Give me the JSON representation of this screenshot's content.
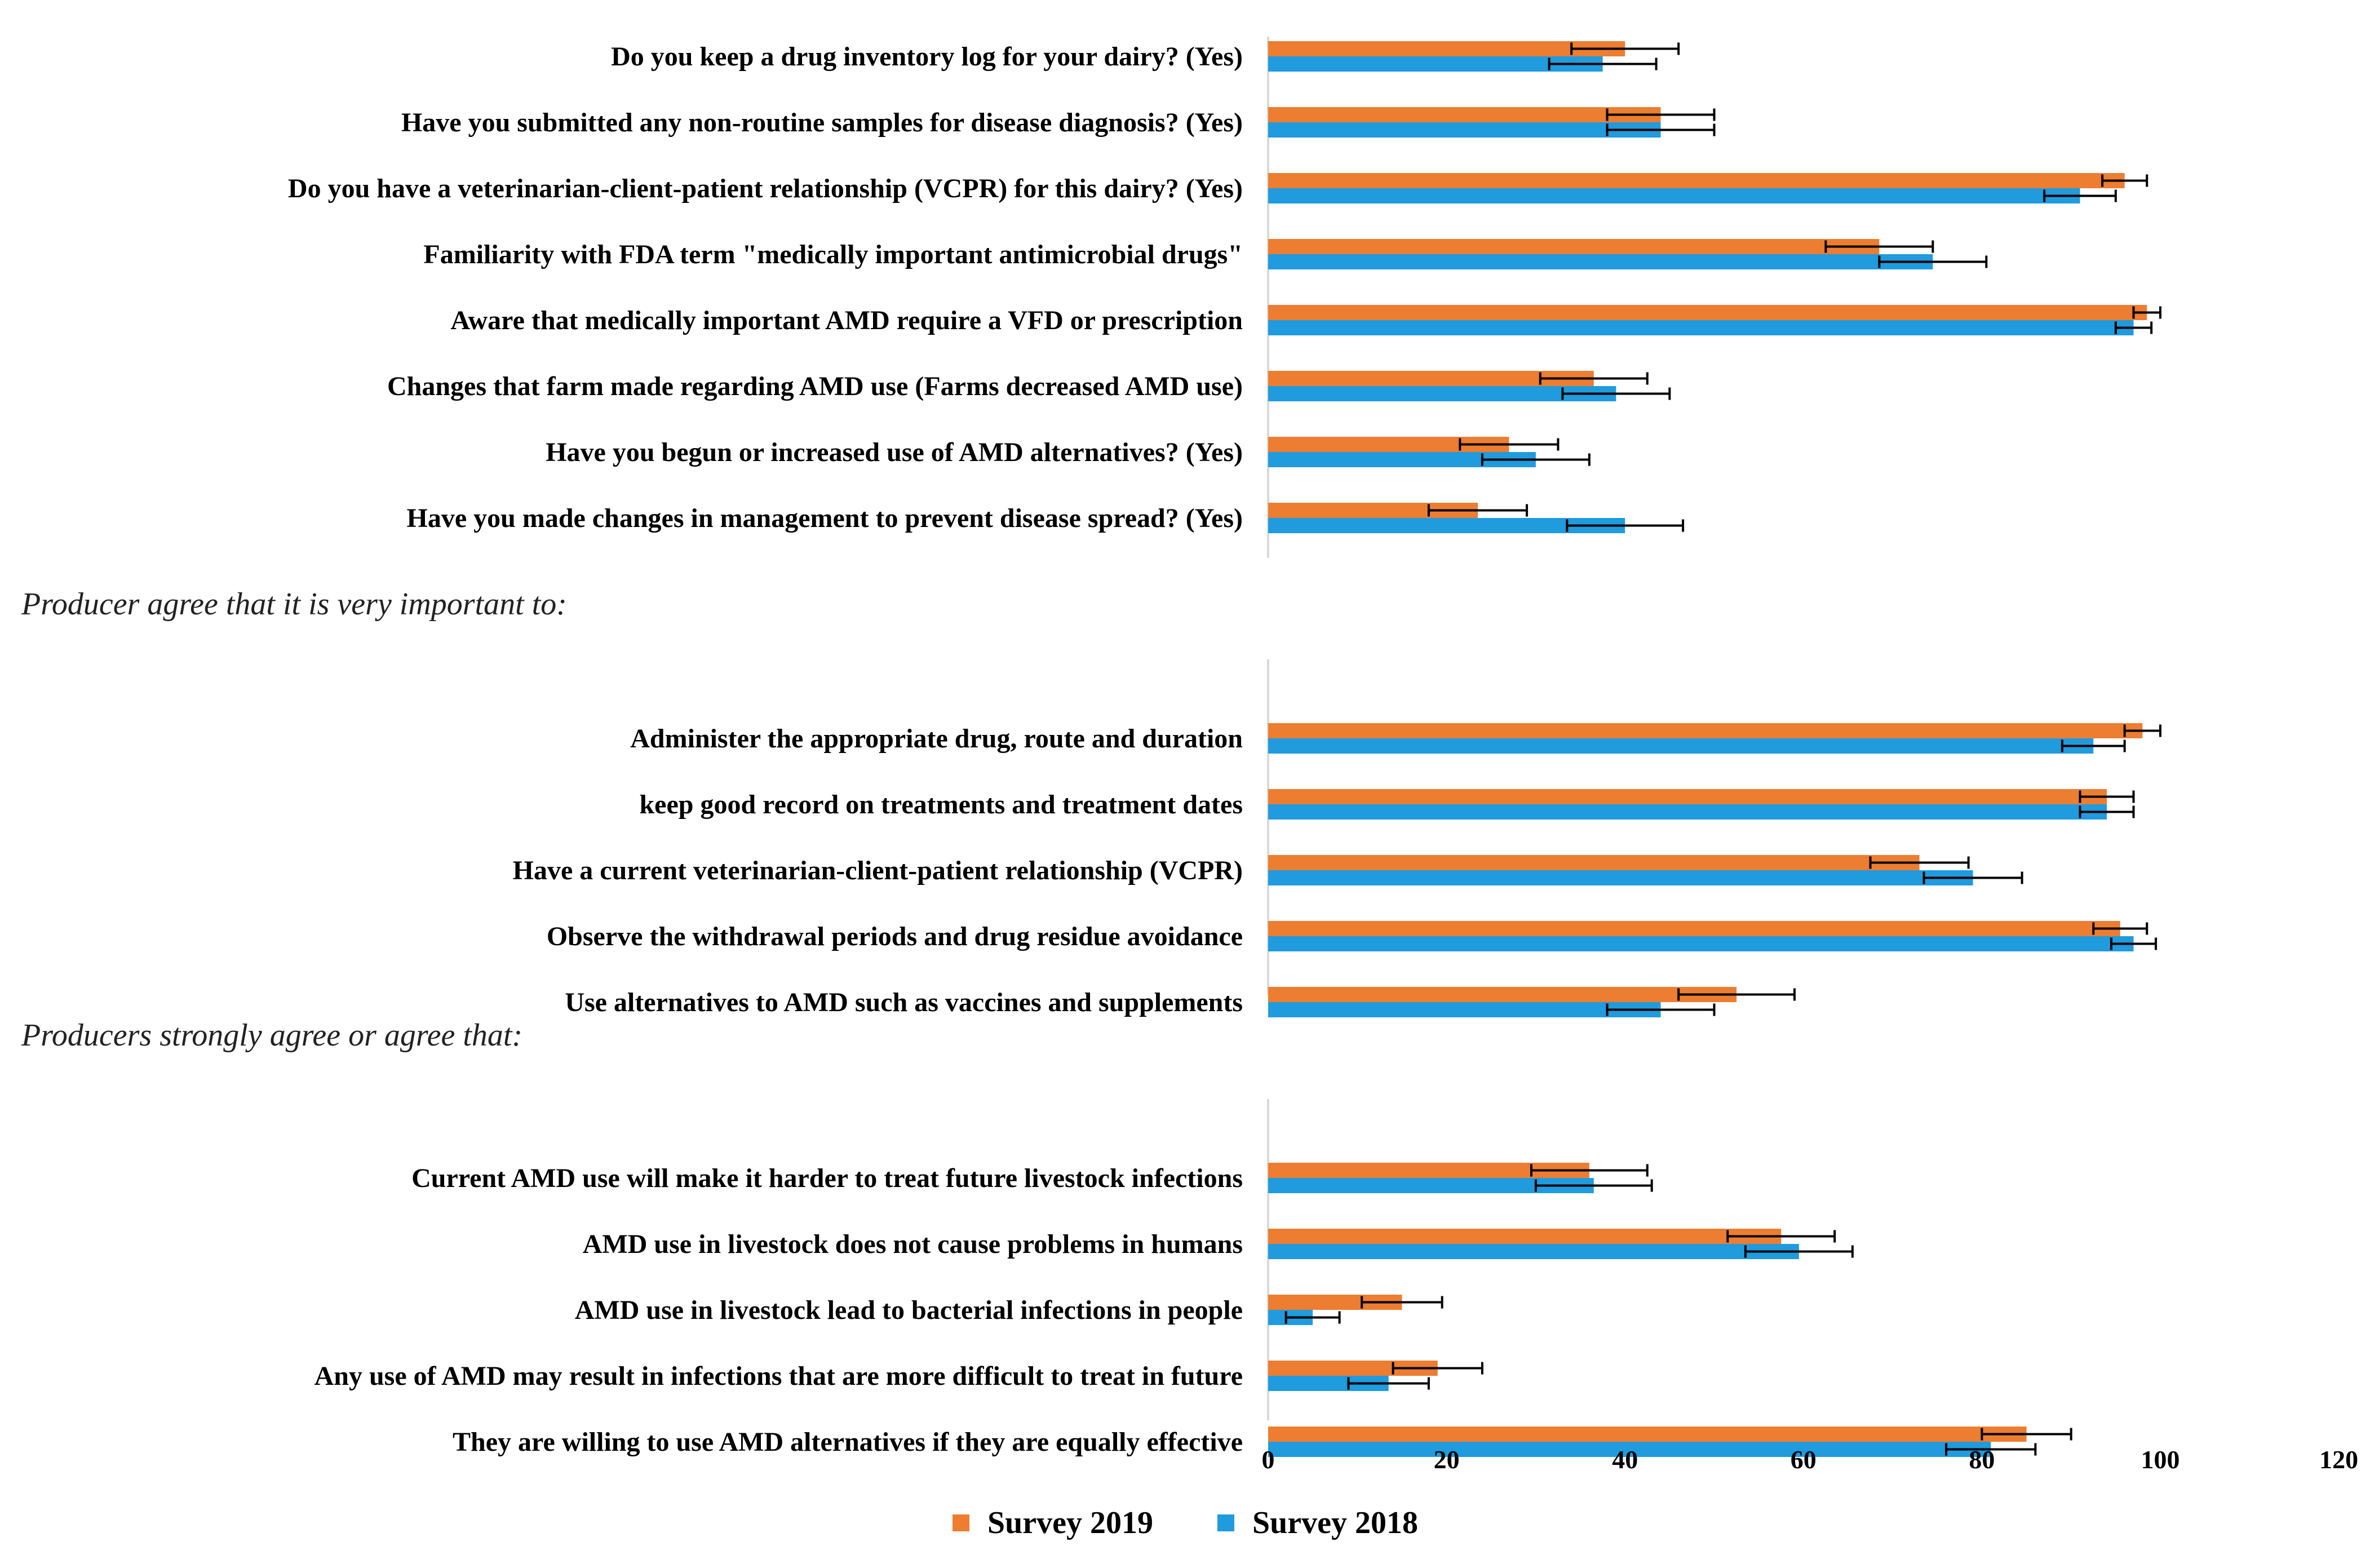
{
  "chart_data": {
    "type": "bar",
    "orientation": "horizontal",
    "xlim": [
      0,
      120
    ],
    "xticks": [
      0,
      20,
      40,
      60,
      80,
      100,
      120
    ],
    "grid": false,
    "legend_position": "bottom",
    "series": [
      {
        "name": "Survey 2019",
        "color": "#ED7D31"
      },
      {
        "name": "Survey 2018",
        "color": "#1F9BDE"
      }
    ],
    "groups": [
      {
        "heading": "",
        "items": [
          {
            "label": "Do you keep a drug inventory log for your dairy? (Yes)",
            "v2019": 40,
            "e2019": 6,
            "v2018": 37.5,
            "e2018": 6
          },
          {
            "label": "Have you submitted any non-routine samples for disease diagnosis? (Yes)",
            "v2019": 44,
            "e2019": 6,
            "v2018": 44,
            "e2018": 6
          },
          {
            "label": "Do you have a veterinarian-client-patient relationship (VCPR) for this dairy? (Yes)",
            "v2019": 96,
            "e2019": 2.5,
            "v2018": 91,
            "e2018": 4
          },
          {
            "label": "Familiarity with FDA term \"medically important antimicrobial drugs\"",
            "v2019": 68.5,
            "e2019": 6,
            "v2018": 74.5,
            "e2018": 6
          },
          {
            "label": "Aware that medically important AMD require a VFD or prescription",
            "v2019": 98.5,
            "e2019": 1.5,
            "v2018": 97,
            "e2018": 2
          },
          {
            "label": "Changes that farm made regarding AMD use (Farms decreased AMD use)",
            "v2019": 36.5,
            "e2019": 6,
            "v2018": 39,
            "e2018": 6
          },
          {
            "label": "Have you begun or increased use of AMD alternatives?  (Yes)",
            "v2019": 27,
            "e2019": 5.5,
            "v2018": 30,
            "e2018": 6
          },
          {
            "label": "Have you made changes in management to prevent disease spread? (Yes)",
            "v2019": 23.5,
            "e2019": 5.5,
            "v2018": 40,
            "e2018": 6.5
          }
        ]
      },
      {
        "heading": "Producer agree that it is very important to:",
        "items": [
          {
            "label": "Administer the appropriate drug, route and duration",
            "v2019": 98,
            "e2019": 2,
            "v2018": 92.5,
            "e2018": 3.5
          },
          {
            "label": "keep good record on treatments and treatment dates",
            "v2019": 94,
            "e2019": 3,
            "v2018": 94,
            "e2018": 3
          },
          {
            "label": "Have a current veterinarian-client-patient relationship (VCPR)",
            "v2019": 73,
            "e2019": 5.5,
            "v2018": 79,
            "e2018": 5.5
          },
          {
            "label": "Observe the withdrawal periods and drug residue avoidance",
            "v2019": 95.5,
            "e2019": 3,
            "v2018": 97,
            "e2018": 2.5
          },
          {
            "label": "Use alternatives to AMD such as vaccines and supplements",
            "v2019": 52.5,
            "e2019": 6.5,
            "v2018": 44,
            "e2018": 6
          }
        ]
      },
      {
        "heading": "Producers strongly agree or agree that:",
        "items": [
          {
            "label": "Current AMD use will make it harder to treat future livestock infections",
            "v2019": 36,
            "e2019": 6.5,
            "v2018": 36.5,
            "e2018": 6.5
          },
          {
            "label": "AMD use in livestock does not cause problems in humans",
            "v2019": 57.5,
            "e2019": 6,
            "v2018": 59.5,
            "e2018": 6
          },
          {
            "label": "AMD use in livestock lead to bacterial infections in people ",
            "v2019": 15,
            "e2019": 4.5,
            "v2018": 5,
            "e2018": 3
          },
          {
            "label": "Any use of AMD may result in infections that are more difficult to treat in future",
            "v2019": 19,
            "e2019": 5,
            "v2018": 13.5,
            "e2018": 4.5
          },
          {
            "label": "They are willing to use AMD alternatives if they are equally effective",
            "v2019": 85,
            "e2019": 5,
            "v2018": 81,
            "e2018": 5
          }
        ]
      }
    ]
  }
}
